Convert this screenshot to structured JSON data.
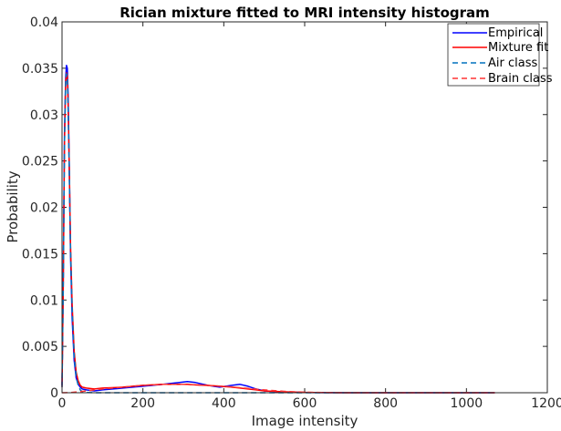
{
  "chart_data": {
    "type": "line",
    "title": "Rician mixture fitted to MRI intensity histogram",
    "xlabel": "Image intensity",
    "ylabel": "Probability",
    "xlim": [
      0,
      1200
    ],
    "ylim": [
      0,
      0.04
    ],
    "xticks": [
      0,
      200,
      400,
      600,
      800,
      1000,
      1200
    ],
    "yticks": [
      0,
      0.005,
      0.01,
      0.015,
      0.02,
      0.025,
      0.03,
      0.035,
      0.04
    ],
    "xtick_labels": [
      "0",
      "200",
      "400",
      "600",
      "800",
      "1000",
      "1200"
    ],
    "ytick_labels": [
      "0",
      "0.005",
      "0.01",
      "0.015",
      "0.02",
      "0.025",
      "0.03",
      "0.035",
      "0.04"
    ],
    "grid": false,
    "legend_position": "top-right",
    "series": [
      {
        "name": "Empirical",
        "color": "#0000ff",
        "style": "solid",
        "x": [
          0,
          3,
          6,
          9,
          11,
          13,
          15,
          18,
          21,
          25,
          30,
          35,
          40,
          45,
          50,
          60,
          80,
          100,
          150,
          200,
          250,
          290,
          310,
          330,
          360,
          390,
          420,
          440,
          460,
          480,
          500,
          550,
          600,
          650,
          700,
          800,
          900,
          1000,
          1070
        ],
        "y": [
          0.0008,
          0.012,
          0.028,
          0.034,
          0.0353,
          0.035,
          0.032,
          0.024,
          0.015,
          0.008,
          0.0035,
          0.0016,
          0.0009,
          0.0006,
          0.0004,
          0.0003,
          0.0002,
          0.0003,
          0.0005,
          0.0007,
          0.0009,
          0.0011,
          0.0012,
          0.0011,
          0.0008,
          0.0006,
          0.0008,
          0.0009,
          0.0007,
          0.0004,
          0.0002,
          8e-05,
          3e-05,
          1e-05,
          0.0,
          0.0,
          0.0,
          0.0,
          0.0
        ]
      },
      {
        "name": "Mixture fit",
        "color": "#ff0000",
        "style": "solid",
        "x": [
          0,
          3,
          6,
          9,
          11,
          13,
          15,
          18,
          21,
          25,
          30,
          35,
          40,
          45,
          50,
          60,
          80,
          100,
          150,
          200,
          250,
          290,
          310,
          330,
          360,
          390,
          420,
          440,
          460,
          480,
          500,
          550,
          600,
          650,
          700,
          800,
          900,
          1000,
          1070
        ],
        "y": [
          0.0006,
          0.011,
          0.027,
          0.0335,
          0.0345,
          0.0342,
          0.031,
          0.024,
          0.016,
          0.0095,
          0.0045,
          0.0022,
          0.0013,
          0.0008,
          0.0006,
          0.0005,
          0.0004,
          0.0005,
          0.0006,
          0.0008,
          0.0009,
          0.0009,
          0.0009,
          0.00085,
          0.0008,
          0.0007,
          0.0006,
          0.0005,
          0.0004,
          0.0003,
          0.0002,
          0.0001,
          4e-05,
          1e-05,
          0.0,
          0.0,
          0.0,
          0.0,
          0.0
        ]
      },
      {
        "name": "Air class",
        "color": "#0072bd",
        "style": "dashed",
        "x": [
          0,
          3,
          6,
          9,
          11,
          13,
          15,
          18,
          21,
          25,
          30,
          35,
          40,
          45,
          50,
          60,
          80,
          100,
          150,
          200,
          300,
          400,
          500,
          600,
          800,
          1000,
          1070
        ],
        "y": [
          0.0006,
          0.011,
          0.027,
          0.0334,
          0.0344,
          0.034,
          0.0305,
          0.0235,
          0.0155,
          0.009,
          0.004,
          0.0018,
          0.0008,
          0.0003,
          0.0001,
          3e-05,
          0.0,
          0.0,
          0.0,
          0.0,
          0.0,
          0.0,
          0.0,
          0.0,
          0.0,
          0.0,
          0.0
        ]
      },
      {
        "name": "Brain class",
        "color": "#ff3333",
        "style": "dashed",
        "x": [
          0,
          20,
          40,
          60,
          80,
          100,
          150,
          200,
          250,
          300,
          350,
          400,
          450,
          500,
          550,
          600,
          650,
          700,
          800,
          900,
          1000,
          1070
        ],
        "y": [
          0.0,
          2e-05,
          0.0001,
          0.0002,
          0.0003,
          0.0004,
          0.0006,
          0.0008,
          0.0009,
          0.0009,
          0.0008,
          0.0007,
          0.0005,
          0.0003,
          0.00015,
          6e-05,
          2e-05,
          0.0,
          0.0,
          0.0,
          0.0,
          0.0
        ]
      }
    ]
  }
}
